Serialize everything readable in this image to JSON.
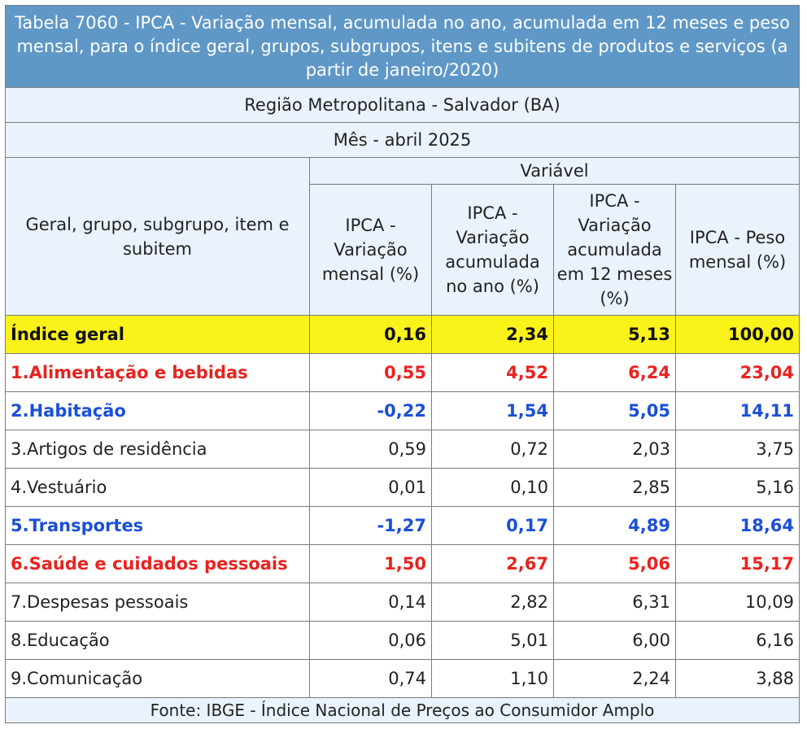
{
  "title": "Tabela 7060 - IPCA - Variação mensal, acumulada no ano, acumulada em 12 meses e peso mensal, para o índice geral, grupos, subgrupos, itens e subitens de produtos e serviços (a partir de janeiro/2020)",
  "region": "Região Metropolitana - Salvador (BA)",
  "month": "Mês - abril 2025",
  "variable_header": "Variável",
  "row_header": "Geral, grupo, subgrupo, item e subitem",
  "columns": [
    "IPCA - Variação mensal (%)",
    "IPCA - Variação acumulada no ano (%)",
    "IPCA - Variação acumulada em 12 meses (%)",
    "IPCA - Peso mensal (%)"
  ],
  "rows": [
    {
      "label": "Índice geral",
      "style": "geral",
      "values": [
        "0,16",
        "2,34",
        "5,13",
        "100,00"
      ]
    },
    {
      "label": "1.Alimentação e bebidas",
      "style": "red",
      "values": [
        "0,55",
        "4,52",
        "6,24",
        "23,04"
      ]
    },
    {
      "label": "2.Habitação",
      "style": "blue",
      "values": [
        "-0,22",
        "1,54",
        "5,05",
        "14,11"
      ]
    },
    {
      "label": "3.Artigos de residência",
      "style": "plain",
      "values": [
        "0,59",
        "0,72",
        "2,03",
        "3,75"
      ]
    },
    {
      "label": "4.Vestuário",
      "style": "plain",
      "values": [
        "0,01",
        "0,10",
        "2,85",
        "5,16"
      ]
    },
    {
      "label": "5.Transportes",
      "style": "blue",
      "values": [
        "-1,27",
        "0,17",
        "4,89",
        "18,64"
      ]
    },
    {
      "label": "6.Saúde e cuidados pessoais",
      "style": "red",
      "values": [
        "1,50",
        "2,67",
        "5,06",
        "15,17"
      ]
    },
    {
      "label": "7.Despesas pessoais",
      "style": "plain",
      "values": [
        "0,14",
        "2,82",
        "6,31",
        "10,09"
      ]
    },
    {
      "label": "8.Educação",
      "style": "plain",
      "values": [
        "0,06",
        "5,01",
        "6,00",
        "6,16"
      ]
    },
    {
      "label": "9.Comunicação",
      "style": "plain",
      "values": [
        "0,74",
        "1,10",
        "2,24",
        "3,88"
      ]
    }
  ],
  "footer": "Fonte: IBGE - Índice Nacional de Preços ao Consumidor Amplo",
  "colors": {
    "title_bg": "#5f98c7",
    "highlight": "#fbf21a",
    "red": "#e8231f",
    "blue": "#1c4fd6"
  }
}
